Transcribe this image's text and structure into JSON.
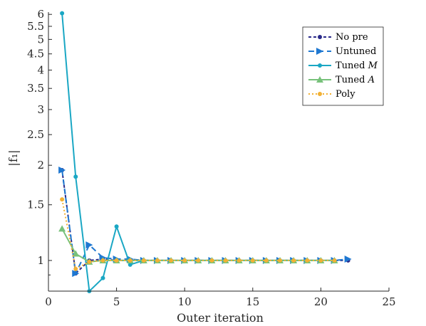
{
  "chart_data": {
    "type": "line",
    "xlabel": "Outer iteration",
    "ylabel": "|f₁|",
    "xlim": [
      0,
      25
    ],
    "ylim": [
      0.8,
      6.1
    ],
    "yscale": "log",
    "xticks": [
      0,
      5,
      10,
      15,
      20,
      25
    ],
    "xtick_labels": [
      "0",
      "5",
      "10",
      "15",
      "20",
      "25"
    ],
    "yticks": [
      1,
      1.5,
      2,
      2.5,
      3,
      3.5,
      4,
      4.5,
      5,
      5.5,
      6
    ],
    "ytick_labels": [
      "1",
      "1.5",
      "2",
      "2.5",
      "3",
      "3.5",
      "4",
      "4.5",
      "5",
      "5.5",
      "6"
    ],
    "grid": false,
    "legend_position": "top-right",
    "series": [
      {
        "name": "No pre",
        "color": "#2a2a8a",
        "dash": "4,3",
        "marker": "circle",
        "x": [
          1,
          2,
          3,
          4,
          5,
          6,
          7,
          8,
          9,
          10,
          11,
          12,
          13,
          14,
          15,
          16,
          17,
          18,
          19,
          20,
          21,
          22
        ],
        "y": [
          1.93,
          0.91,
          1.0,
          1.01,
          1.0,
          1.0,
          1.0,
          1.0,
          1.0,
          1.0,
          1.0,
          1.0,
          1.0,
          1.0,
          1.0,
          1.0,
          1.0,
          1.0,
          1.0,
          1.0,
          1.0,
          1.0
        ]
      },
      {
        "name": "Untuned",
        "color": "#1f78d1",
        "dash": "8,5",
        "marker": "triangle-right",
        "x": [
          1,
          2,
          3,
          4,
          5,
          6,
          7,
          8,
          9,
          10,
          11,
          12,
          13,
          14,
          15,
          16,
          17,
          18,
          19,
          20,
          21,
          22
        ],
        "y": [
          1.93,
          0.91,
          1.12,
          1.02,
          1.01,
          1.01,
          1.0,
          1.0,
          1.0,
          1.0,
          1.0,
          1.0,
          1.0,
          1.0,
          1.0,
          1.0,
          1.0,
          1.0,
          1.0,
          1.0,
          1.0,
          1.01
        ]
      },
      {
        "name": "Tuned M",
        "color": "#1aa7c4",
        "dash": "",
        "marker": "circle",
        "x": [
          1,
          2,
          3,
          4,
          5,
          6,
          7,
          8,
          9,
          10,
          11,
          12,
          13,
          14,
          15,
          16,
          17,
          18,
          19,
          20,
          21
        ],
        "y": [
          6.05,
          1.84,
          0.8,
          0.88,
          1.28,
          0.97,
          1.0,
          1.0,
          1.0,
          1.0,
          1.0,
          1.0,
          1.0,
          1.0,
          1.0,
          1.0,
          1.0,
          1.0,
          1.0,
          1.0,
          1.0
        ]
      },
      {
        "name": "Tuned A",
        "color": "#77c17a",
        "dash": "",
        "marker": "triangle-up",
        "x": [
          1,
          2,
          3,
          4,
          5,
          6,
          7,
          8,
          9,
          10,
          11,
          12,
          13,
          14,
          15,
          16,
          17,
          18,
          19,
          20,
          21
        ],
        "y": [
          1.26,
          1.05,
          0.99,
          1.0,
          1.0,
          1.0,
          1.0,
          1.0,
          1.0,
          1.0,
          1.0,
          1.0,
          1.0,
          1.0,
          1.0,
          1.0,
          1.0,
          1.0,
          1.0,
          1.0,
          1.0
        ]
      },
      {
        "name": "Poly",
        "color": "#f2b134",
        "dash": "2,3",
        "marker": "circle",
        "x": [
          1,
          2,
          3,
          4,
          5,
          6,
          7,
          8,
          9,
          10,
          11,
          12,
          13,
          14,
          15,
          16,
          17,
          18,
          19,
          20,
          21
        ],
        "y": [
          1.56,
          0.94,
          0.99,
          1.0,
          1.0,
          1.0,
          1.0,
          1.0,
          1.0,
          1.0,
          1.0,
          1.0,
          1.0,
          1.0,
          1.0,
          1.0,
          1.0,
          1.0,
          1.0,
          1.0,
          1.0
        ]
      }
    ]
  }
}
